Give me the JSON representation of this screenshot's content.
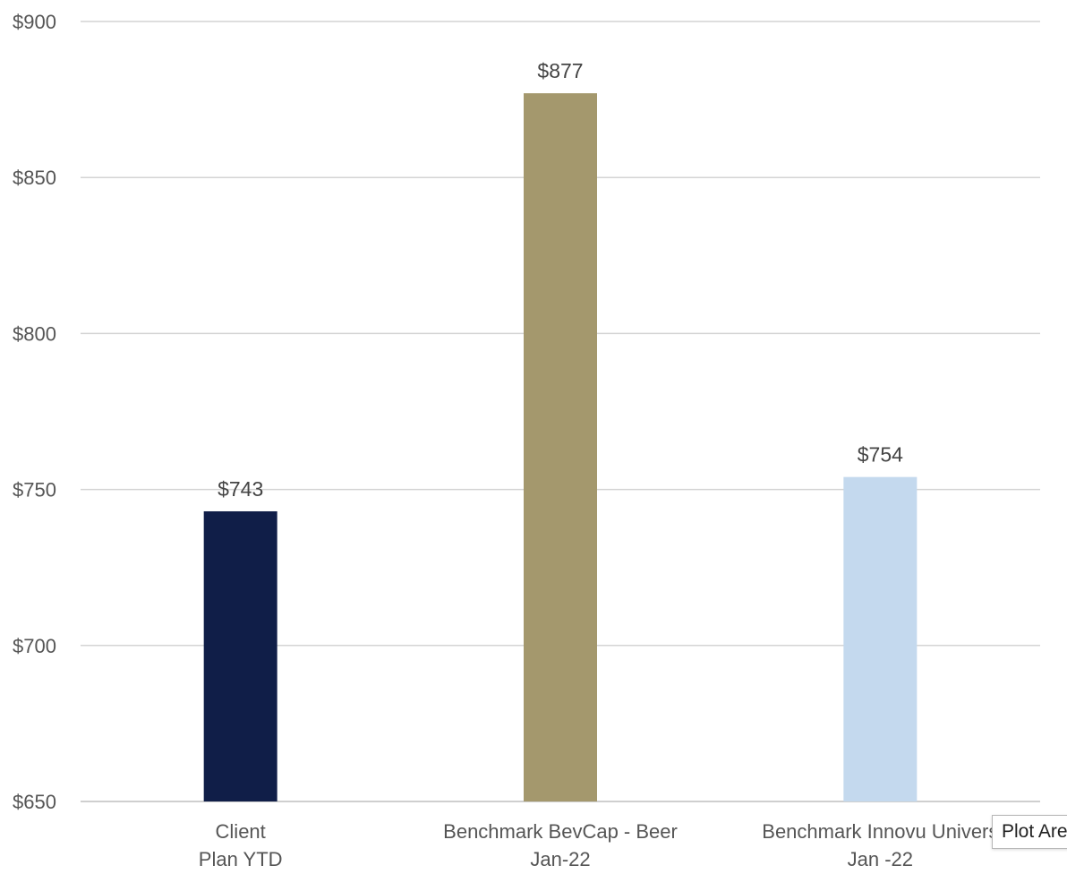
{
  "chart_data": {
    "type": "bar",
    "title": "",
    "xlabel": "",
    "ylabel": "",
    "ylim": [
      650,
      900
    ],
    "yticks": [
      650,
      700,
      750,
      800,
      850,
      900
    ],
    "ytick_labels": [
      "$650",
      "$700",
      "$750",
      "$800",
      "$850",
      "$900"
    ],
    "categories": [
      [
        "Client",
        "Plan YTD"
      ],
      [
        "Benchmark BevCap - Beer",
        "Jan-22"
      ],
      [
        "Benchmark Innovu Univers",
        "Jan -22"
      ]
    ],
    "values": [
      743,
      877,
      754
    ],
    "data_labels": [
      "$743",
      "$877",
      "$754"
    ],
    "colors": [
      "#101e48",
      "#a4986d",
      "#c4d9ee"
    ],
    "grid": true,
    "legend": "none"
  },
  "tooltip": {
    "text": "Plot Are"
  }
}
